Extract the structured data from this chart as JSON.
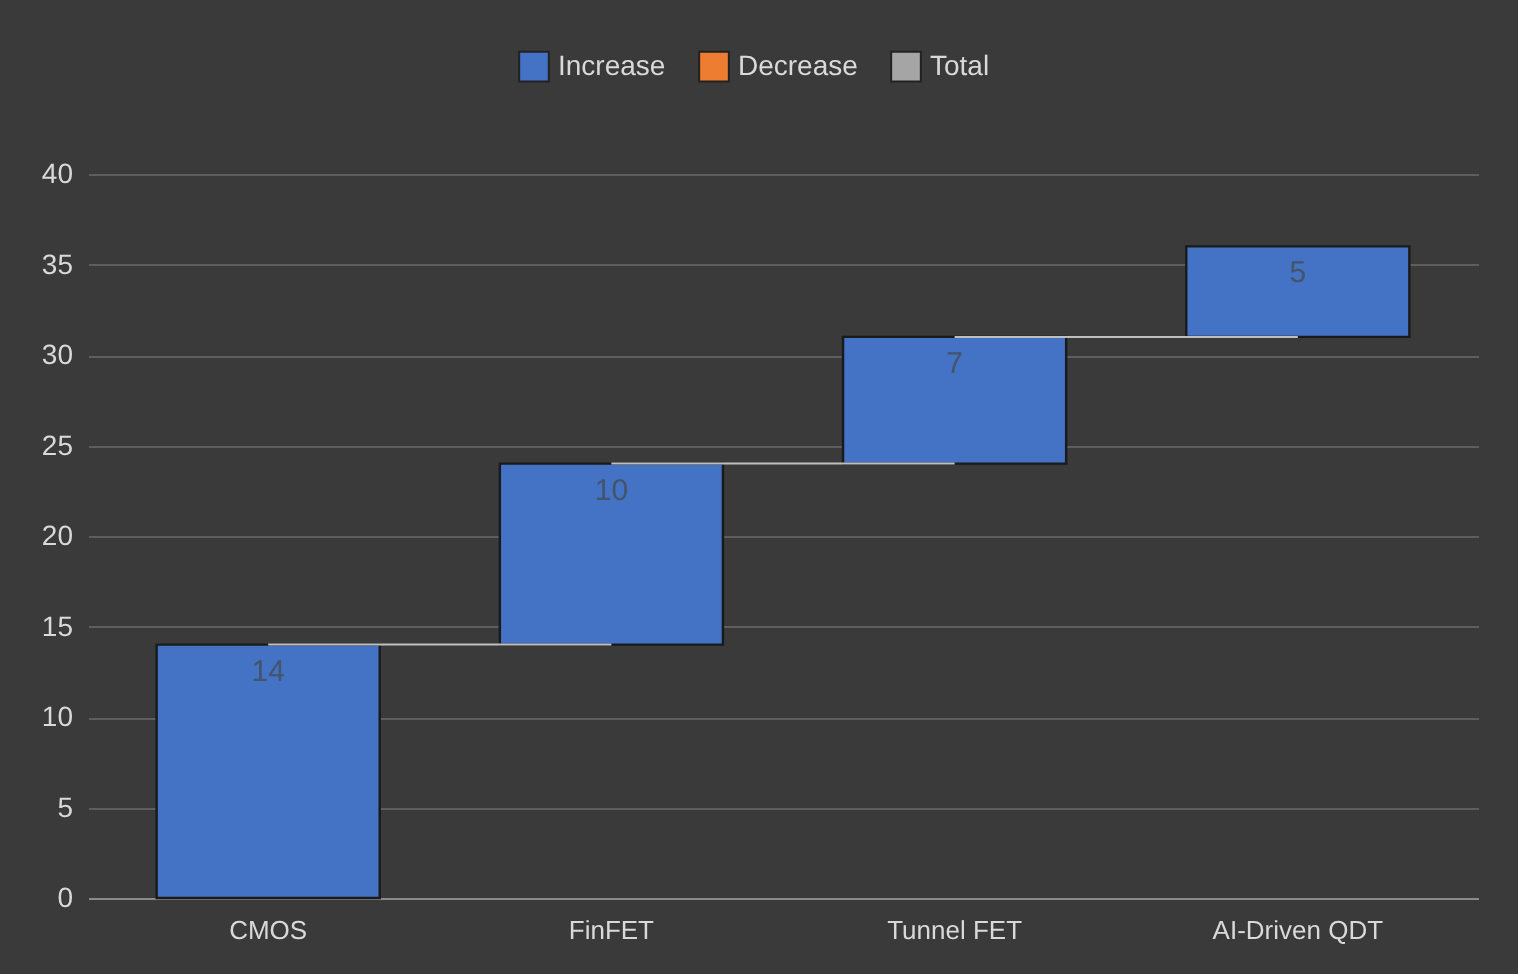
{
  "chart_data": {
    "type": "bar",
    "categories": [
      "CMOS",
      "FinFET",
      "Tunnel FET",
      "AI-Driven QDT"
    ],
    "series": [
      {
        "name": "Increase",
        "color": "#4472c4",
        "values": [
          14,
          10,
          7,
          5
        ],
        "base": [
          0,
          14,
          24,
          31
        ]
      },
      {
        "name": "Decrease",
        "color": "#ed7d31",
        "values": [
          null,
          null,
          null,
          null
        ]
      },
      {
        "name": "Total",
        "color": "#a5a5a5",
        "values": [
          null,
          null,
          null,
          null
        ]
      }
    ],
    "ylim": [
      0,
      40
    ],
    "yticks": [
      0,
      5,
      10,
      15,
      20,
      25,
      30,
      35,
      40
    ],
    "grid": "y",
    "legend": "top",
    "data_labels": true
  }
}
